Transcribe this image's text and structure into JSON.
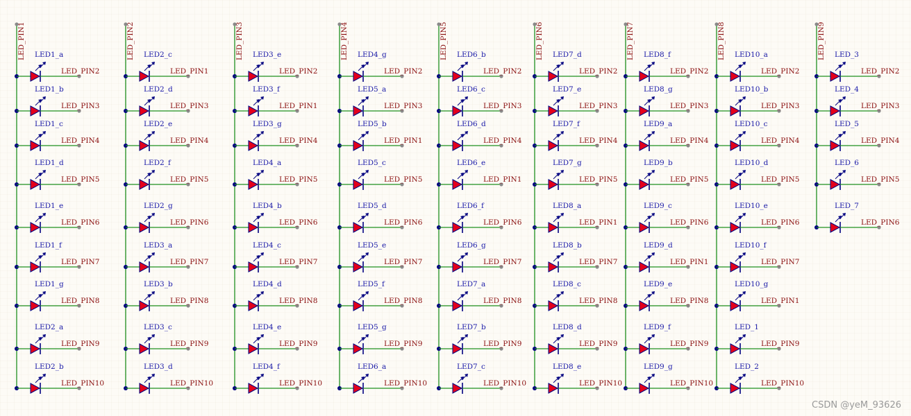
{
  "colors": {
    "background": "#fdfbf6",
    "grid": "#efe9dc",
    "wire": "#1f8f1f",
    "junction": "#000080",
    "led_fill": "#e4001b",
    "led_outline": "#000080",
    "component_label": "#1a1aa8",
    "net_label": "#8b1010",
    "pin_end": "#8a8a8a"
  },
  "columns": [
    {
      "port": "LED_PIN1",
      "rows": [
        {
          "led": "LED1_a",
          "net": "LED_PIN2"
        },
        {
          "led": "LED1_b",
          "net": "LED_PIN3"
        },
        {
          "led": "LED1_c",
          "net": "LED_PIN4"
        },
        {
          "led": "LED1_d",
          "net": "LED_PIN5"
        },
        {
          "led": "LED1_e",
          "net": "LED_PIN6"
        },
        {
          "led": "LED1_f",
          "net": "LED_PIN7"
        },
        {
          "led": "LED1_g",
          "net": "LED_PIN8"
        },
        {
          "led": "LED2_a",
          "net": "LED_PIN9"
        },
        {
          "led": "LED2_b",
          "net": "LED_PIN10"
        }
      ]
    },
    {
      "port": "LED_PIN2",
      "rows": [
        {
          "led": "LED2_c",
          "net": "LED_PIN1"
        },
        {
          "led": "LED2_d",
          "net": "LED_PIN3"
        },
        {
          "led": "LED2_e",
          "net": "LED_PIN4"
        },
        {
          "led": "LED2_f",
          "net": "LED_PIN5"
        },
        {
          "led": "LED2_g",
          "net": "LED_PIN6"
        },
        {
          "led": "LED3_a",
          "net": "LED_PIN7"
        },
        {
          "led": "LED3_b",
          "net": "LED_PIN8"
        },
        {
          "led": "LED3_c",
          "net": "LED_PIN9"
        },
        {
          "led": "LED3_d",
          "net": "LED_PIN10"
        }
      ]
    },
    {
      "port": "LED_PIN3",
      "rows": [
        {
          "led": "LED3_e",
          "net": "LED_PIN2"
        },
        {
          "led": "LED3_f",
          "net": "LED_PIN1"
        },
        {
          "led": "LED3_g",
          "net": "LED_PIN4"
        },
        {
          "led": "LED4_a",
          "net": "LED_PIN5"
        },
        {
          "led": "LED4_b",
          "net": "LED_PIN6"
        },
        {
          "led": "LED4_c",
          "net": "LED_PIN7"
        },
        {
          "led": "LED4_d",
          "net": "LED_PIN8"
        },
        {
          "led": "LED4_e",
          "net": "LED_PIN9"
        },
        {
          "led": "LED4_f",
          "net": "LED_PIN10"
        }
      ]
    },
    {
      "port": "LED_PIN4",
      "rows": [
        {
          "led": "LED4_g",
          "net": "LED_PIN2"
        },
        {
          "led": "LED5_a",
          "net": "LED_PIN3"
        },
        {
          "led": "LED5_b",
          "net": "LED_PIN1"
        },
        {
          "led": "LED5_c",
          "net": "LED_PIN5"
        },
        {
          "led": "LED5_d",
          "net": "LED_PIN6"
        },
        {
          "led": "LED5_e",
          "net": "LED_PIN7"
        },
        {
          "led": "LED5_f",
          "net": "LED_PIN8"
        },
        {
          "led": "LED5_g",
          "net": "LED_PIN9"
        },
        {
          "led": "LED6_a",
          "net": "LED_PIN10"
        }
      ]
    },
    {
      "port": "LED_PIN5",
      "rows": [
        {
          "led": "LED6_b",
          "net": "LED_PIN2"
        },
        {
          "led": "LED6_c",
          "net": "LED_PIN3"
        },
        {
          "led": "LED6_d",
          "net": "LED_PIN4"
        },
        {
          "led": "LED6_e",
          "net": "LED_PIN1"
        },
        {
          "led": "LED6_f",
          "net": "LED_PIN6"
        },
        {
          "led": "LED6_g",
          "net": "LED_PIN7"
        },
        {
          "led": "LED7_a",
          "net": "LED_PIN8"
        },
        {
          "led": "LED7_b",
          "net": "LED_PIN9"
        },
        {
          "led": "LED7_c",
          "net": "LED_PIN10"
        }
      ]
    },
    {
      "port": "LED_PIN6",
      "rows": [
        {
          "led": "LED7_d",
          "net": "LED_PIN2"
        },
        {
          "led": "LED7_e",
          "net": "LED_PIN3"
        },
        {
          "led": "LED7_f",
          "net": "LED_PIN4"
        },
        {
          "led": "LED7_g",
          "net": "LED_PIN5"
        },
        {
          "led": "LED8_a",
          "net": "LED_PIN1"
        },
        {
          "led": "LED8_b",
          "net": "LED_PIN7"
        },
        {
          "led": "LED8_c",
          "net": "LED_PIN8"
        },
        {
          "led": "LED8_d",
          "net": "LED_PIN9"
        },
        {
          "led": "LED8_e",
          "net": "LED_PIN10"
        }
      ]
    },
    {
      "port": "LED_PIN7",
      "rows": [
        {
          "led": "LED8_f",
          "net": "LED_PIN2"
        },
        {
          "led": "LED8_g",
          "net": "LED_PIN3"
        },
        {
          "led": "LED9_a",
          "net": "LED_PIN4"
        },
        {
          "led": "LED9_b",
          "net": "LED_PIN5"
        },
        {
          "led": "LED9_c",
          "net": "LED_PIN6"
        },
        {
          "led": "LED9_d",
          "net": "LED_PIN1"
        },
        {
          "led": "LED9_e",
          "net": "LED_PIN8"
        },
        {
          "led": "LED9_f",
          "net": "LED_PIN9"
        },
        {
          "led": "LED9_g",
          "net": "LED_PIN10"
        }
      ]
    },
    {
      "port": "LED_PIN8",
      "rows": [
        {
          "led": "LED10_a",
          "net": "LED_PIN2"
        },
        {
          "led": "LED10_b",
          "net": "LED_PIN3"
        },
        {
          "led": "LED10_c",
          "net": "LED_PIN4"
        },
        {
          "led": "LED10_d",
          "net": "LED_PIN5"
        },
        {
          "led": "LED10_e",
          "net": "LED_PIN6"
        },
        {
          "led": "LED10_f",
          "net": "LED_PIN7"
        },
        {
          "led": "LED10_g",
          "net": "LED_PIN1"
        },
        {
          "led": "LED_1",
          "net": "LED_PIN9"
        },
        {
          "led": "LED_2",
          "net": "LED_PIN10"
        }
      ]
    },
    {
      "port": "LED_PIN9",
      "rows": [
        {
          "led": "LED_3",
          "net": "LED_PIN2"
        },
        {
          "led": "LED_4",
          "net": "LED_PIN3"
        },
        {
          "led": "LED_5",
          "net": "LED_PIN4"
        },
        {
          "led": "LED_6",
          "net": "LED_PIN5"
        },
        {
          "led": "LED_7",
          "net": "LED_PIN6"
        }
      ]
    }
  ],
  "watermark": "CSDN @yeM_93626"
}
